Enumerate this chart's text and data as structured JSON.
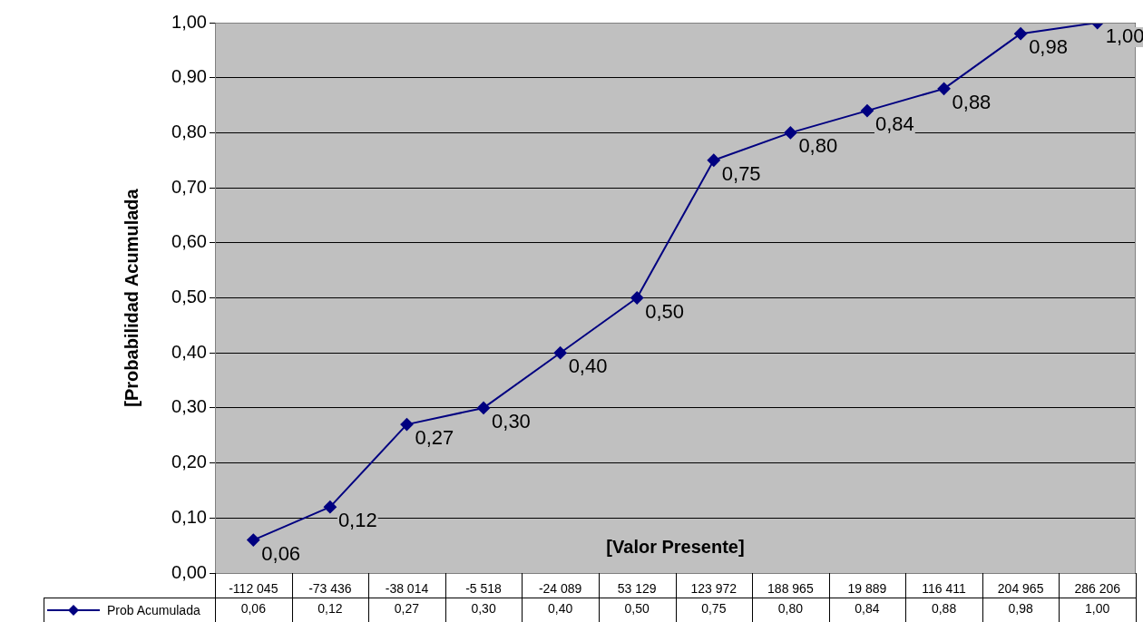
{
  "chart_data": {
    "type": "line",
    "xlabel": "[Valor Presente]",
    "ylabel": "[Probabilidad Acumulada",
    "categories": [
      "-112 045",
      "-73 436",
      "-38 014",
      "-5 518",
      "-24 089",
      "53 129",
      "123 972",
      "188 965",
      "19 889",
      "116 411",
      "204 965",
      "286 206"
    ],
    "series": [
      {
        "name": "Prob Acumulada",
        "color": "#000080",
        "values": [
          0.06,
          0.12,
          0.27,
          0.3,
          0.4,
          0.5,
          0.75,
          0.8,
          0.84,
          0.88,
          0.98,
          1.0
        ],
        "value_labels": [
          "0,06",
          "0,12",
          "0,27",
          "0,30",
          "0,40",
          "0,50",
          "0,75",
          "0,80",
          "0,84",
          "0,88",
          "0,98",
          "1,00"
        ]
      }
    ],
    "ylim": [
      0,
      1
    ],
    "yticks": [
      {
        "value": 0,
        "label": "0,00"
      },
      {
        "value": 0.1,
        "label": "0,10"
      },
      {
        "value": 0.2,
        "label": "0,20"
      },
      {
        "value": 0.3,
        "label": "0,30"
      },
      {
        "value": 0.4,
        "label": "0,40"
      },
      {
        "value": 0.5,
        "label": "0,50"
      },
      {
        "value": 0.6,
        "label": "0,60"
      },
      {
        "value": 0.7,
        "label": "0,70"
      },
      {
        "value": 0.8,
        "label": "0,80"
      },
      {
        "value": 0.9,
        "label": "0,90"
      },
      {
        "value": 1,
        "label": "1,00"
      }
    ],
    "grid": "y",
    "marker": "diamond",
    "line_style": "solid",
    "legend": "bottom left"
  }
}
